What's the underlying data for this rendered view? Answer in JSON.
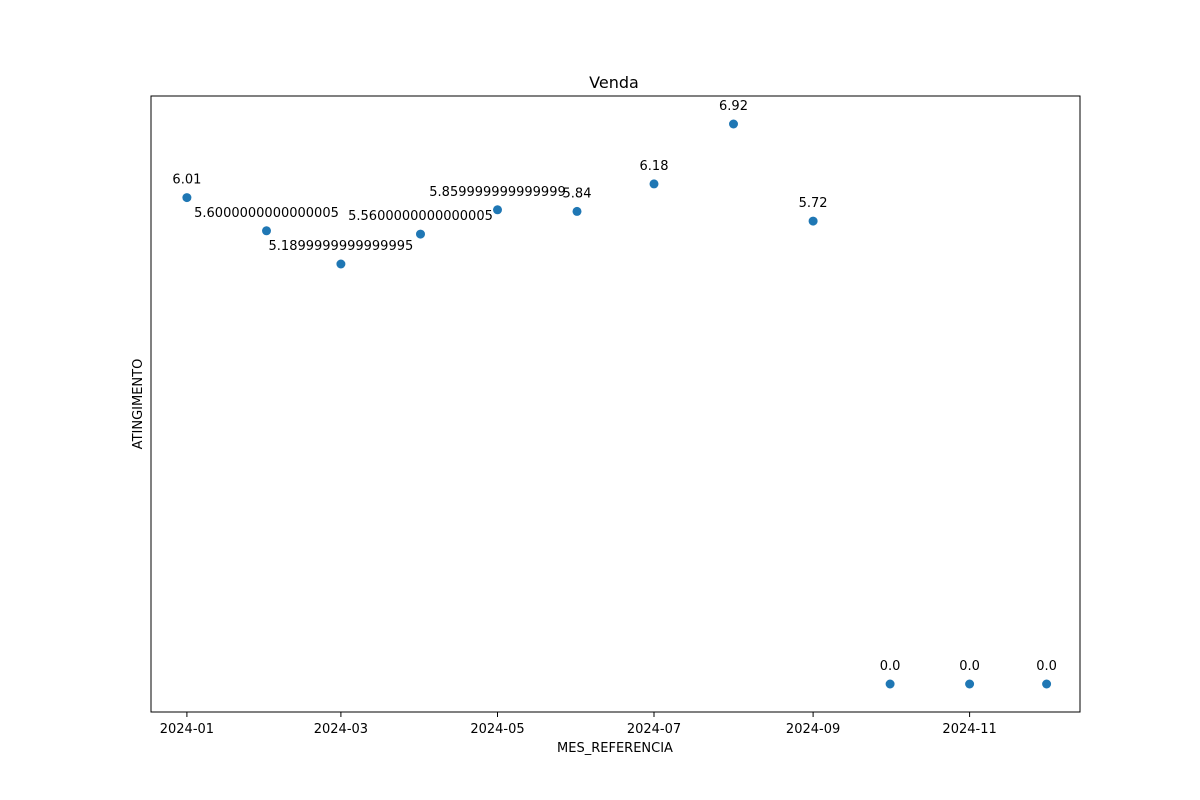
{
  "chart_data": {
    "type": "scatter",
    "title": "Venda",
    "xlabel": "MES_REFERENCIA",
    "ylabel": "ATINGIMENTO",
    "x": [
      "2024-01-01",
      "2024-02-01",
      "2024-03-01",
      "2024-04-01",
      "2024-05-01",
      "2024-06-01",
      "2024-07-01",
      "2024-08-01",
      "2024-09-01",
      "2024-10-01",
      "2024-11-01",
      "2024-12-01"
    ],
    "values": [
      6.01,
      5.6000000000000005,
      5.1899999999999995,
      5.5600000000000005,
      5.859999999999999,
      5.84,
      6.18,
      6.92,
      5.72,
      0.0,
      0.0,
      0.0
    ],
    "data_labels": [
      "6.01",
      "5.6000000000000005",
      "5.1899999999999995",
      "5.5600000000000005",
      "5.859999999999999",
      "5.84",
      "6.18",
      "6.92",
      "5.72",
      "0.0",
      "0.0",
      "0.0"
    ],
    "x_ticks": [
      "2024-01",
      "2024-03",
      "2024-05",
      "2024-07",
      "2024-09",
      "2024-11"
    ],
    "x_tick_dates": [
      "2024-01-01",
      "2024-03-01",
      "2024-05-01",
      "2024-07-01",
      "2024-09-01",
      "2024-11-01"
    ],
    "xlim": [
      "2023-12-18",
      "2024-12-14"
    ],
    "ylim": [
      -0.346,
      7.266
    ],
    "y_ticks_visible": false,
    "grid": false,
    "legend": "none",
    "marker_color": "#1f77b4"
  }
}
